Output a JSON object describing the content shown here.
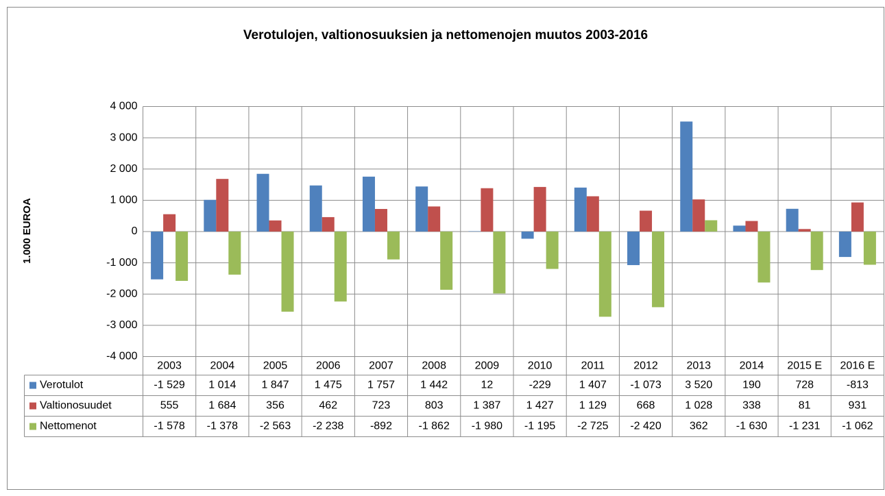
{
  "chart_data": {
    "type": "bar",
    "title": "Verotulojen, valtionosuuksien ja nettomenojen muutos 2003-2016",
    "y_label": "1.000 EUROA",
    "categories": [
      "2003",
      "2004",
      "2005",
      "2006",
      "2007",
      "2008",
      "2009",
      "2010",
      "2011",
      "2012",
      "2013",
      "2014",
      "2015 E",
      "2016 E"
    ],
    "series": [
      {
        "name": "Verotulot",
        "color": "#4f81bd",
        "values": [
          -1529,
          1014,
          1847,
          1475,
          1757,
          1442,
          12,
          -229,
          1407,
          -1073,
          3520,
          190,
          728,
          -813
        ],
        "value_labels": [
          "-1 529",
          "1 014",
          "1 847",
          "1 475",
          "1 757",
          "1 442",
          "12",
          "-229",
          "1 407",
          "-1 073",
          "3 520",
          "190",
          "728",
          "-813"
        ]
      },
      {
        "name": "Valtionosuudet",
        "color": "#c0504d",
        "values": [
          555,
          1684,
          356,
          462,
          723,
          803,
          1387,
          1427,
          1129,
          668,
          1028,
          338,
          81,
          931
        ],
        "value_labels": [
          "555",
          "1 684",
          "356",
          "462",
          "723",
          "803",
          "1 387",
          "1 427",
          "1 129",
          "668",
          "1 028",
          "338",
          "81",
          "931"
        ]
      },
      {
        "name": "Nettomenot",
        "color": "#9bbb59",
        "values": [
          -1578,
          -1378,
          -2563,
          -2238,
          -892,
          -1862,
          -1980,
          -1195,
          -2725,
          -2420,
          362,
          -1630,
          -1231,
          -1062
        ],
        "value_labels": [
          "-1 578",
          "-1 378",
          "-2 563",
          "-2 238",
          "-892",
          "-1 862",
          "-1 980",
          "-1 195",
          "-2 725",
          "-2 420",
          "362",
          "-1 630",
          "-1 231",
          "-1 062"
        ]
      }
    ],
    "ylim": [
      -4000,
      4000
    ],
    "yticks": [
      {
        "value": -4000,
        "label": "-4 000"
      },
      {
        "value": -3000,
        "label": "-3 000"
      },
      {
        "value": -2000,
        "label": "-2 000"
      },
      {
        "value": -1000,
        "label": "-1 000"
      },
      0,
      {
        "value": 1000,
        "label": "1 000"
      },
      {
        "value": 2000,
        "label": "2 000"
      },
      {
        "value": 3000,
        "label": "3 000"
      },
      {
        "value": 4000,
        "label": "4 000"
      }
    ],
    "grid": true
  }
}
